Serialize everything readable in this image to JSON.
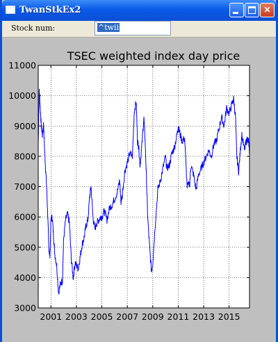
{
  "window": {
    "title": "TwanStkEx2",
    "minimize_symbol": "",
    "maximize_symbol": "",
    "close_symbol": "✕"
  },
  "toolbar": {
    "stock_label": "Stock num:",
    "stock_value": "^twii"
  },
  "colors": {
    "titlebar": "#0b4fd6",
    "plot_bg": "#ffffff",
    "figure_bg": "#bfbfbf",
    "line": "#0000ff"
  },
  "chart_data": {
    "type": "line",
    "title": "TSEC weighted index day price",
    "xlabel": "",
    "ylabel": "",
    "xlim": [
      2000.0,
      2016.6
    ],
    "ylim": [
      3000,
      11000
    ],
    "x_ticks": [
      2001,
      2003,
      2005,
      2007,
      2009,
      2011,
      2013,
      2015
    ],
    "x_tick_labels": [
      "2001",
      "2003",
      "2005",
      "2007",
      "2009",
      "2011",
      "2013",
      "2015"
    ],
    "y_ticks": [
      3000,
      4000,
      5000,
      6000,
      7000,
      8000,
      9000,
      10000,
      11000
    ],
    "y_tick_labels": [
      "3000",
      "4000",
      "5000",
      "6000",
      "7000",
      "8000",
      "9000",
      "10000",
      "11000"
    ],
    "grid": true,
    "series": [
      {
        "x": [
          2000.0,
          2000.08,
          2000.16,
          2000.24,
          2000.33,
          2000.42,
          2000.5,
          2000.58,
          2000.67,
          2000.75,
          2000.83,
          2000.92,
          2001.0,
          2001.1,
          2001.2,
          2001.3,
          2001.45,
          2001.6,
          2001.75,
          2001.9,
          2002.0,
          2002.15,
          2002.3,
          2002.45,
          2002.6,
          2002.75,
          2002.9,
          2003.0,
          2003.15,
          2003.3,
          2003.45,
          2003.6,
          2003.75,
          2003.9,
          2004.05,
          2004.15,
          2004.3,
          2004.45,
          2004.6,
          2004.75,
          2004.9,
          2005.0,
          2005.2,
          2005.4,
          2005.6,
          2005.8,
          2006.0,
          2006.2,
          2006.4,
          2006.5,
          2006.6,
          2006.8,
          2007.0,
          2007.2,
          2007.4,
          2007.55,
          2007.7,
          2007.8,
          2007.9,
          2008.0,
          2008.15,
          2008.3,
          2008.4,
          2008.5,
          2008.6,
          2008.75,
          2008.9,
          2009.0,
          2009.2,
          2009.4,
          2009.6,
          2009.8,
          2010.0,
          2010.1,
          2010.3,
          2010.5,
          2010.7,
          2010.9,
          2011.0,
          2011.1,
          2011.3,
          2011.5,
          2011.7,
          2011.9,
          2012.0,
          2012.2,
          2012.4,
          2012.6,
          2012.8,
          2013.0,
          2013.2,
          2013.4,
          2013.6,
          2013.8,
          2014.0,
          2014.2,
          2014.4,
          2014.6,
          2014.8,
          2015.0,
          2015.2,
          2015.35,
          2015.5,
          2015.6,
          2015.75,
          2015.9,
          2016.0,
          2016.2,
          2016.35,
          2016.5,
          2016.6
        ],
        "y": [
          8400,
          10200,
          9600,
          9000,
          8700,
          9100,
          8200,
          7600,
          6900,
          6000,
          5000,
          4700,
          5900,
          6000,
          5400,
          4800,
          4400,
          3500,
          3800,
          3900,
          5300,
          5900,
          6100,
          5800,
          4600,
          4000,
          4500,
          4400,
          4300,
          4700,
          5100,
          5300,
          5700,
          5900,
          6700,
          7000,
          6000,
          5600,
          5800,
          5900,
          6000,
          6000,
          6200,
          5900,
          6300,
          6400,
          6600,
          6800,
          7200,
          6500,
          6700,
          7500,
          7800,
          8100,
          8000,
          9500,
          9800,
          8500,
          8300,
          7700,
          8400,
          9300,
          8500,
          7300,
          6000,
          5000,
          4200,
          4500,
          5800,
          6900,
          7200,
          7600,
          8000,
          7600,
          7700,
          8100,
          8300,
          8700,
          9000,
          8800,
          8500,
          8600,
          7000,
          7100,
          7700,
          7400,
          6900,
          7400,
          7600,
          7800,
          8000,
          8200,
          8000,
          8400,
          8500,
          8900,
          9300,
          9000,
          9600,
          9400,
          9700,
          9900,
          9300,
          8000,
          7500,
          8300,
          8700,
          8200,
          8500,
          8600,
          8100
        ]
      }
    ]
  }
}
